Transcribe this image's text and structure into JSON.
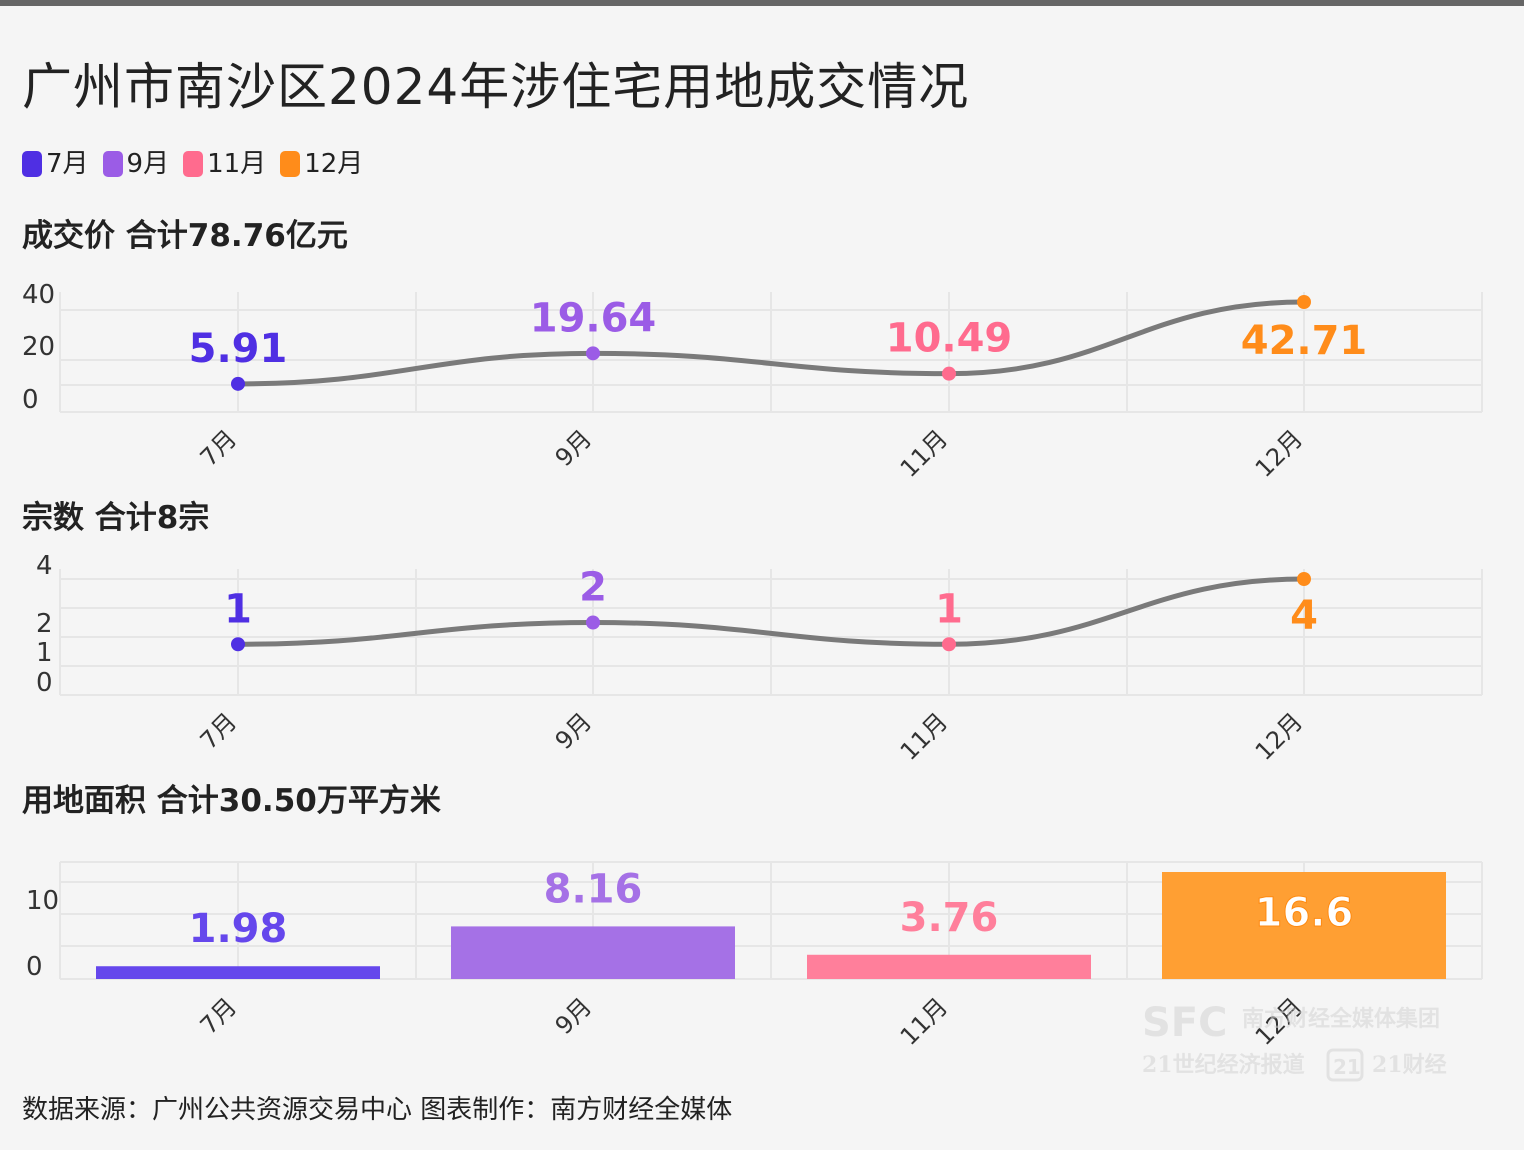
{
  "title": "广州市南沙区2024年涉住宅用地成交情况",
  "legend": [
    {
      "label": "7月",
      "color": "#4f2fe3"
    },
    {
      "label": "9月",
      "color": "#9b5ce6"
    },
    {
      "label": "11月",
      "color": "#ff6b8e"
    },
    {
      "label": "12月",
      "color": "#ff8c1a"
    }
  ],
  "chart_data": [
    {
      "type": "line",
      "title": "成交价 合计78.76亿元",
      "categories": [
        "7月",
        "9月",
        "11月",
        "12月"
      ],
      "values": [
        5.91,
        19.64,
        10.49,
        42.71
      ],
      "value_labels": [
        "5.91",
        "19.64",
        "10.49",
        "42.71"
      ],
      "yticks": [
        "0",
        "20",
        "40"
      ],
      "ylim": [
        0,
        42.71
      ],
      "colors": [
        "#4f2fe3",
        "#9b5ce6",
        "#ff6b8e",
        "#ff8c1a"
      ],
      "line_color": "#7a7a7a",
      "grid": true
    },
    {
      "type": "line",
      "title": "宗数 合计8宗",
      "categories": [
        "7月",
        "9月",
        "11月",
        "12月"
      ],
      "values": [
        1,
        2,
        1,
        4
      ],
      "value_labels": [
        "1",
        "2",
        "1",
        "4"
      ],
      "yticks": [
        "0",
        "1",
        "2",
        "4"
      ],
      "ylim": [
        0,
        4
      ],
      "colors": [
        "#4f2fe3",
        "#9b5ce6",
        "#ff6b8e",
        "#ff8c1a"
      ],
      "line_color": "#7a7a7a",
      "grid": true
    },
    {
      "type": "bar",
      "title": "用地面积 合计30.50万平方米",
      "categories": [
        "7月",
        "9月",
        "11月",
        "12月"
      ],
      "values": [
        1.98,
        8.16,
        3.76,
        16.6
      ],
      "value_labels": [
        "1.98",
        "8.16",
        "3.76",
        "16.6"
      ],
      "yticks": [
        "0",
        "10"
      ],
      "ylim": [
        0,
        16.6
      ],
      "colors": [
        "#6547ec",
        "#a571e6",
        "#ff7f9b",
        "#ff9f33"
      ],
      "grid": true
    }
  ],
  "footer": "数据来源：广州公共资源交易中心 图表制作：南方财经全媒体",
  "watermark": {
    "line1_logo": "SFC",
    "line1_text": "南方财经全媒体集团",
    "line2_left": "21世纪经济报道",
    "line2_badge": "21",
    "line2_right": "21财经"
  }
}
